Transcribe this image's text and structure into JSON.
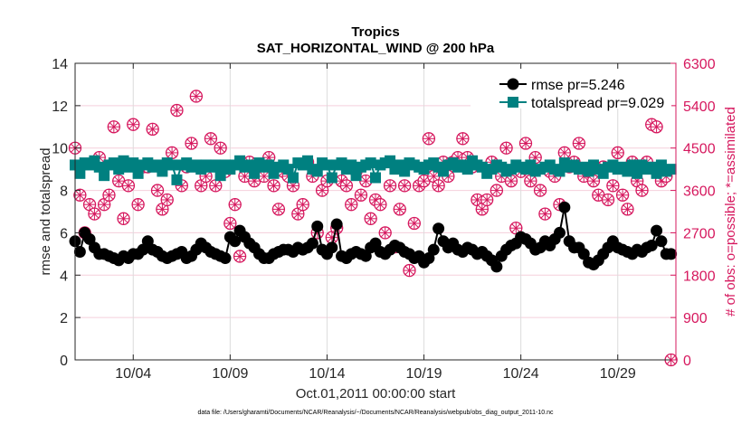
{
  "chart_data": {
    "type": "line",
    "title": "Tropics",
    "subtitle": "SAT_HORIZONTAL_WIND @ 200 hPa",
    "xlabel": "Oct.01,2011 00:00:00 start",
    "ylabel": "rmse and totalspread",
    "ylabel_right": "# of obs: o=possible; *=assimilated",
    "footnote": "data file: /Users/gharamti/Documents/NCAR/Reanalysis/~/Documents/NCAR/Reanalysis/webpub/obs_diag_output_2011-10.nc",
    "x_start": "2011-10-01",
    "x_end": "2011-11-01",
    "x_interval_hours": 6,
    "xticks": [
      {
        "day": 4,
        "label": "10/04"
      },
      {
        "day": 9,
        "label": "10/09"
      },
      {
        "day": 14,
        "label": "10/14"
      },
      {
        "day": 19,
        "label": "10/19"
      },
      {
        "day": 24,
        "label": "10/24"
      },
      {
        "day": 29,
        "label": "10/29"
      }
    ],
    "ylim": [
      0,
      14
    ],
    "yticks": [
      0,
      2,
      4,
      6,
      8,
      10,
      12,
      14
    ],
    "ylim_right": [
      0,
      6300
    ],
    "yticks_right": [
      0,
      900,
      1800,
      2700,
      3600,
      4500,
      5400,
      6300
    ],
    "grid": true,
    "legend_placement": "top-right",
    "colors": {
      "rmse": "#000000",
      "totalspread": "#008080",
      "obs": "#d6185e"
    },
    "series": [
      {
        "name": "rmse pr=5.246",
        "marker": "circle",
        "values": [
          5.6,
          5.1,
          6.0,
          5.7,
          5.3,
          5.0,
          5.0,
          4.9,
          4.8,
          4.7,
          4.9,
          4.8,
          5.0,
          5.0,
          5.2,
          5.6,
          5.2,
          5.1,
          4.9,
          4.8,
          4.9,
          5.0,
          5.1,
          4.8,
          4.9,
          5.2,
          5.5,
          5.3,
          5.1,
          5.0,
          4.9,
          4.8,
          5.8,
          5.6,
          6.1,
          5.8,
          5.5,
          5.3,
          5.0,
          4.8,
          4.8,
          5.0,
          5.1,
          5.2,
          5.2,
          5.1,
          5.3,
          5.2,
          5.3,
          5.5,
          6.3,
          5.2,
          5.0,
          5.3,
          6.4,
          4.9,
          4.8,
          5.0,
          5.1,
          5.0,
          4.9,
          5.3,
          5.5,
          5.1,
          5.0,
          5.2,
          5.4,
          5.3,
          5.1,
          5.0,
          4.8,
          4.9,
          4.6,
          4.8,
          5.2,
          6.2,
          5.6,
          5.3,
          5.5,
          5.2,
          5.1,
          5.3,
          5.2,
          5.0,
          5.1,
          4.9,
          4.7,
          4.4,
          4.9,
          5.2,
          5.4,
          5.5,
          5.8,
          5.7,
          5.5,
          5.2,
          5.3,
          5.6,
          5.4,
          5.7,
          6.0,
          7.2,
          5.6,
          5.3,
          5.3,
          5.0,
          4.6,
          4.5,
          4.7,
          5.0,
          5.3,
          5.6,
          5.3,
          5.2,
          5.1,
          5.0,
          5.2,
          5.1,
          5.3,
          5.4,
          6.1,
          5.6,
          5.0,
          5.0
        ]
      },
      {
        "name": "totalspread pr=9.029",
        "marker": "square",
        "values": [
          9.2,
          8.8,
          9.3,
          9.2,
          9.4,
          9.1,
          8.7,
          9.2,
          9.3,
          9.0,
          9.4,
          9.1,
          9.3,
          8.8,
          9.2,
          9.3,
          9.1,
          9.2,
          8.9,
          9.3,
          9.2,
          8.5,
          9.2,
          9.3,
          9.1,
          9.2,
          9.0,
          9.2,
          9.1,
          9.2,
          8.7,
          9.2,
          9.0,
          9.2,
          9.4,
          9.1,
          9.2,
          8.8,
          9.3,
          9.1,
          9.2,
          8.8,
          9.1,
          9.2,
          9.0,
          8.6,
          9.3,
          9.2,
          9.4,
          9.0,
          8.9,
          9.3,
          9.2,
          8.6,
          9.2,
          9.3,
          9.0,
          9.2,
          8.7,
          9.1,
          9.2,
          9.3,
          8.6,
          9.2,
          9.3,
          9.4,
          9.0,
          9.2,
          8.9,
          9.3,
          9.2,
          9.1,
          9.0,
          9.2,
          9.3,
          9.1,
          8.9,
          9.2,
          9.3,
          9.1,
          9.2,
          9.0,
          9.4,
          9.2,
          9.1,
          8.8,
          9.0,
          9.2,
          9.1,
          8.9,
          9.0,
          9.2,
          9.1,
          9.0,
          9.2,
          8.9,
          9.0,
          9.1,
          9.2,
          9.0,
          8.9,
          9.3,
          9.1,
          9.2,
          9.0,
          9.1,
          8.9,
          9.2,
          9.0,
          8.8,
          9.1,
          9.2,
          9.0,
          9.1,
          8.9,
          9.2,
          8.8,
          9.2,
          9.0,
          9.1,
          8.8,
          9.2,
          8.9,
          9.0
        ]
      },
      {
        "name": "obs",
        "marker": "circle-asterisk",
        "axis": "right",
        "values": [
          4500,
          3500,
          2700,
          3300,
          3100,
          4300,
          3300,
          3500,
          4950,
          3800,
          3000,
          3700,
          5000,
          3300,
          4100,
          4100,
          4900,
          3600,
          3200,
          3400,
          4400,
          5300,
          3700,
          4100,
          4600,
          5600,
          3700,
          3900,
          4700,
          3700,
          4500,
          4000,
          2900,
          3300,
          2200,
          3900,
          4200,
          3800,
          4100,
          3900,
          4300,
          3700,
          3200,
          4000,
          3900,
          3700,
          3100,
          3300,
          4200,
          3900,
          2700,
          3600,
          3800,
          2600,
          2800,
          3800,
          3700,
          3300,
          4000,
          3500,
          3800,
          3000,
          3400,
          3300,
          2700,
          3700,
          2400,
          3200,
          3700,
          1900,
          2900,
          3700,
          3800,
          4700,
          3900,
          3700,
          4200,
          3900,
          4200,
          4300,
          4700,
          4300,
          4100,
          3400,
          3200,
          3400,
          4200,
          3600,
          3900,
          4500,
          3800,
          2800,
          4000,
          4600,
          3800,
          4300,
          3600,
          3100,
          4000,
          3900,
          3300,
          4400,
          4100,
          4200,
          4600,
          3900,
          4000,
          3800,
          3500,
          4100,
          3400,
          3700,
          4400,
          3500,
          3200,
          4200,
          3800,
          3600,
          4200,
          5000,
          4950,
          3800,
          3900,
          0
        ]
      }
    ]
  }
}
